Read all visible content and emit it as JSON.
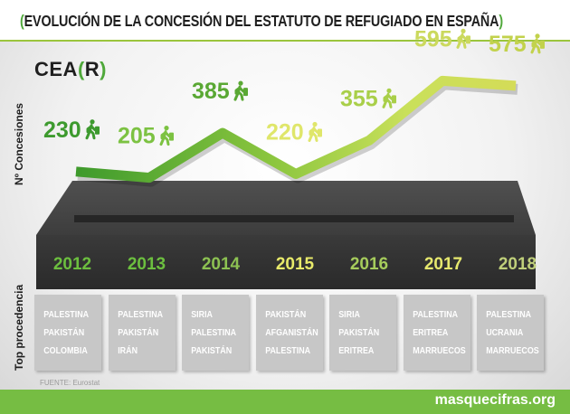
{
  "header": {
    "title": "EVOLUCIÓN DE LA CONCESIÓN DEL ESTATUTO DE REFUGIADO EN ESPAÑA",
    "logo_text": "CEA",
    "logo_letter": "R"
  },
  "colors": {
    "accent": "#76bd43",
    "dark_green": "#4fa83a",
    "yellow_green": "#d7e05a",
    "platform": "#3c3c3c",
    "box_grey": "#c7c7c7"
  },
  "chart_data": {
    "type": "line",
    "title": "EVOLUCIÓN DE LA CONCESIÓN DEL ESTATUTO DE REFUGIADO EN ESPAÑA",
    "ylabel": "Nº Concesiones",
    "xlabel": "",
    "categories": [
      "2012",
      "2013",
      "2014",
      "2015",
      "2016",
      "2017",
      "2018"
    ],
    "values": [
      230,
      205,
      385,
      220,
      355,
      595,
      575
    ],
    "label_colors": [
      "#3d9a2e",
      "#7cc242",
      "#5aa834",
      "#dfe66a",
      "#a9cf49",
      "#cbd95d",
      "#c2d24c"
    ],
    "year_colors": [
      "#6cbf3f",
      "#6cbf3f",
      "#8cc152",
      "#e8ea6a",
      "#a6cc5c",
      "#e6e86e",
      "#bfcf7a"
    ],
    "ylim": [
      0,
      700
    ]
  },
  "ylabel_bottom": "Top procedencia",
  "top_procedencia": [
    [
      "PALESTINA",
      "PAKISTÁN",
      "COLOMBIA"
    ],
    [
      "PALESTINA",
      "PAKISTÁN",
      "IRÁN"
    ],
    [
      "SIRIA",
      "PALESTINA",
      "PAKISTÁN"
    ],
    [
      "PAKISTÁN",
      "AFGANISTÁN",
      "PALESTINA"
    ],
    [
      "SIRIA",
      "PAKISTÁN",
      "ERITREA"
    ],
    [
      "PALESTINA",
      "ERITREA",
      "MARRUECOS"
    ],
    [
      "PALESTINA",
      "UCRANIA",
      "MARRUECOS"
    ]
  ],
  "footer": {
    "source": "FUENTE: Eurostat",
    "website": "masquecifras.org"
  }
}
